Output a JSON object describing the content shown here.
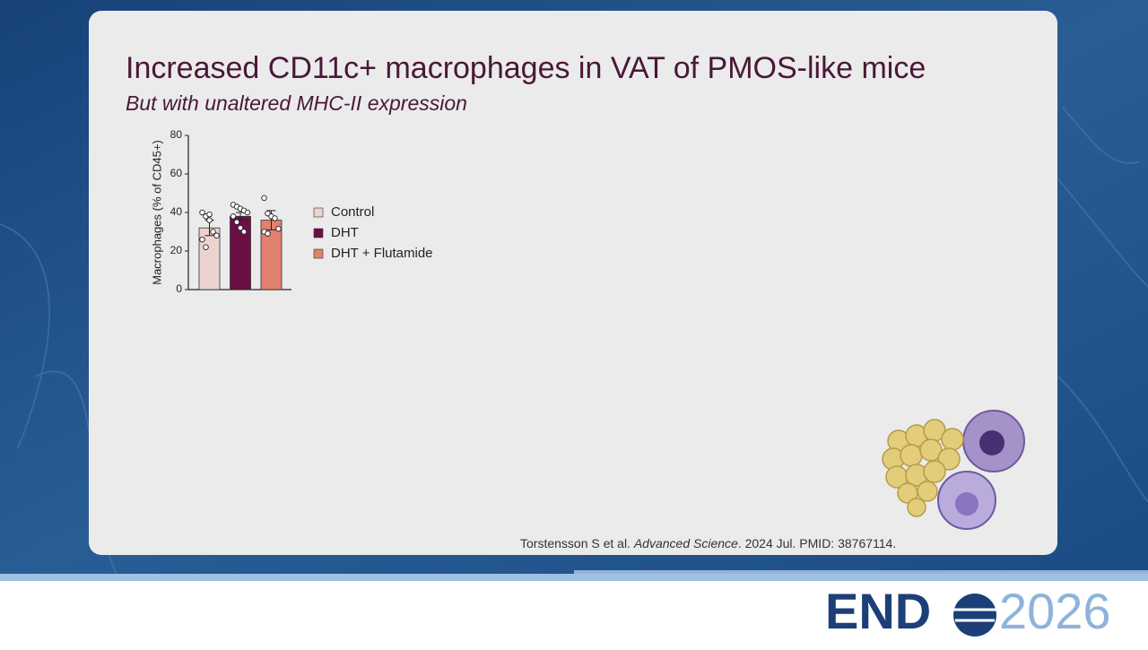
{
  "chart_data": {
    "type": "bar",
    "title": "Increased CD11c+ macrophages in VAT of PMOS-like mice",
    "subtitle": "But with unaltered MHC-II expression",
    "y_label": "Macrophages (% of CD45+)",
    "categories": [
      null
    ],
    "series": [
      {
        "name": "Control",
        "color": "#ecd3cf",
        "values": [
          32
        ],
        "errors": [
          4
        ],
        "points": [
          40,
          38,
          36,
          30,
          28,
          26,
          22,
          39
        ]
      },
      {
        "name": "DHT",
        "color": "#6b0f45",
        "values": [
          38
        ],
        "errors": [
          2
        ],
        "points": [
          44,
          43,
          42,
          41,
          40,
          38,
          35,
          32,
          30
        ]
      },
      {
        "name": "DHT + Flutamide",
        "color": "#e2806f",
        "values": [
          36
        ],
        "errors": [
          5
        ],
        "points": [
          47.5,
          39.5,
          38,
          37,
          31.5,
          30,
          29
        ]
      }
    ],
    "ylim": [
      0,
      80
    ],
    "yticks": [
      0,
      20,
      40,
      60,
      80
    ]
  },
  "citation": {
    "authors": "Torstensson S et al.",
    "journal": "Advanced Science",
    "details": ". 2024 Jul. PMID: 38767114."
  },
  "logo": {
    "left": "END",
    "right": "2026"
  }
}
